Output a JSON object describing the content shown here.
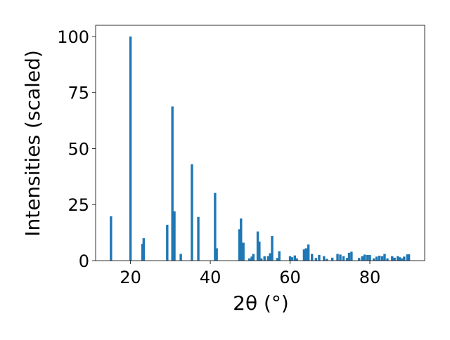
{
  "chart_data": {
    "type": "bar",
    "xlabel": "2θ (°)",
    "ylabel": "Intensities (scaled)",
    "xlim": [
      11.25,
      93.75
    ],
    "ylim": [
      0,
      105
    ],
    "xticks": [
      20,
      40,
      60,
      80
    ],
    "yticks": [
      0,
      25,
      50,
      75,
      100
    ],
    "grid": false,
    "bar_color": "#1f77b4",
    "bar_width": 0.6,
    "x": [
      15.1,
      20.0,
      23.0,
      23.3,
      29.2,
      30.5,
      31.0,
      32.6,
      35.4,
      37.0,
      41.2,
      41.6,
      47.3,
      47.7,
      48.3,
      49.8,
      50.4,
      50.8,
      51.9,
      52.3,
      52.8,
      53.6,
      54.5,
      55.0,
      55.5,
      56.8,
      57.3,
      60.0,
      60.5,
      61.2,
      61.7,
      63.5,
      64.0,
      64.6,
      65.5,
      66.5,
      67.3,
      68.5,
      69.2,
      70.6,
      71.9,
      72.6,
      73.4,
      74.3,
      74.8,
      75.4,
      77.3,
      78.1,
      78.7,
      79.4,
      80.0,
      81.0,
      81.7,
      82.4,
      83.1,
      83.7,
      84.4,
      85.6,
      86.2,
      87.0,
      87.5,
      88.1,
      88.6,
      89.4,
      89.8
    ],
    "values": [
      19.8,
      100.0,
      7.5,
      10.0,
      16.0,
      68.8,
      22.0,
      3.0,
      43.0,
      19.5,
      30.2,
      5.5,
      14.0,
      18.8,
      8.0,
      1.0,
      1.8,
      3.0,
      13.0,
      8.5,
      1.0,
      2.0,
      2.0,
      3.3,
      11.0,
      1.2,
      4.2,
      2.0,
      1.5,
      2.3,
      1.0,
      5.0,
      5.5,
      7.2,
      3.0,
      1.2,
      2.5,
      2.0,
      0.8,
      1.3,
      3.0,
      2.7,
      2.0,
      1.2,
      3.5,
      4.0,
      1.2,
      2.0,
      2.7,
      2.5,
      2.5,
      1.0,
      1.8,
      2.2,
      2.0,
      3.0,
      1.0,
      2.0,
      1.3,
      2.0,
      1.5,
      1.0,
      1.8,
      2.8,
      2.8
    ]
  }
}
